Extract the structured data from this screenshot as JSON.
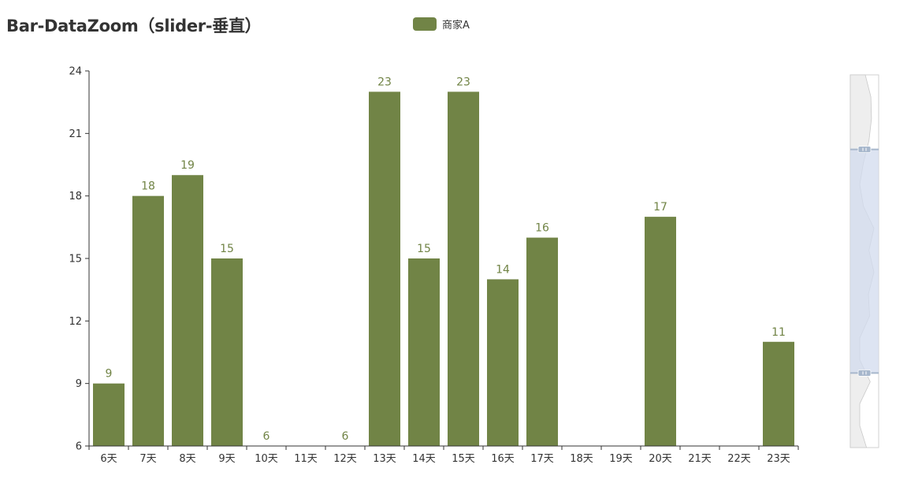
{
  "title": "Bar-DataZoom（slider-垂直）",
  "colors": {
    "bar": "#718446",
    "axis": "#333333",
    "label": "#718446",
    "slider_bg": "#eeeeee",
    "slider_window": "#d2dbee",
    "slider_handle": "#a7b7cc"
  },
  "chart_data": {
    "type": "bar",
    "categories": [
      "6天",
      "7天",
      "8天",
      "9天",
      "10天",
      "11天",
      "12天",
      "13天",
      "14天",
      "15天",
      "16天",
      "17天",
      "18天",
      "19天",
      "20天",
      "21天",
      "22天",
      "23天"
    ],
    "series": [
      {
        "name": "商家A",
        "values": [
          9,
          18,
          19,
          15,
          6,
          null,
          6,
          23,
          15,
          23,
          14,
          16,
          null,
          null,
          17,
          null,
          null,
          11
        ]
      }
    ],
    "ylim": [
      6,
      24
    ],
    "yticks": [
      6,
      9,
      12,
      15,
      18,
      21,
      24
    ],
    "data_labels": true,
    "legend_position": "top-center",
    "grid": false,
    "datazoom": {
      "type": "slider",
      "orientation": "vertical",
      "start": 20,
      "end": 80
    }
  }
}
